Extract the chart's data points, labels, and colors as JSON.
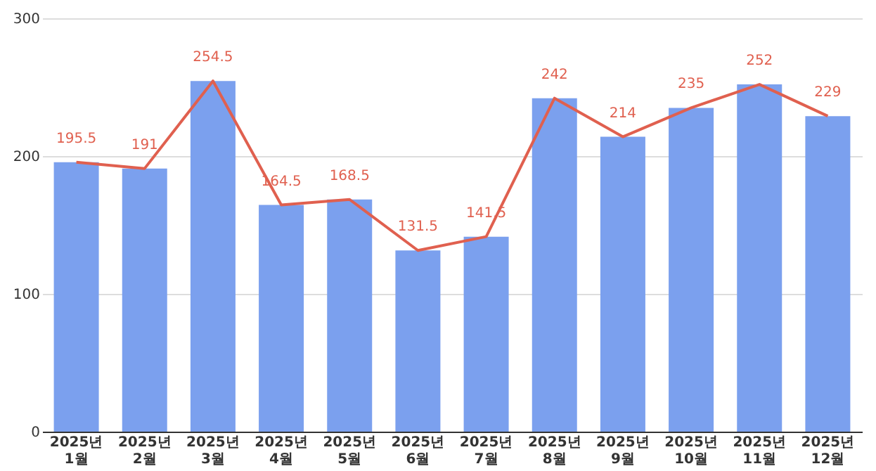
{
  "chart_data": {
    "type": "bar",
    "categories": [
      "2025년\n1월",
      "2025년\n2월",
      "2025년\n3월",
      "2025년\n4월",
      "2025년\n5월",
      "2025년\n6월",
      "2025년\n7월",
      "2025년\n8월",
      "2025년\n9월",
      "2025년\n10월",
      "2025년\n11월",
      "2025년\n12월"
    ],
    "series": [
      {
        "color": "#7ba0ee",
        "values": [
          195.5,
          191,
          254.5,
          164.5,
          168.5,
          131.5,
          141.5,
          242,
          214,
          235,
          252,
          229
        ]
      },
      {
        "type": "line",
        "color": "#e0604f",
        "data_labels": true,
        "values": [
          195.5,
          191,
          254.5,
          164.5,
          168.5,
          131.5,
          141.5,
          242,
          214,
          235,
          252,
          229
        ]
      }
    ],
    "ylim": [
      0,
      300
    ],
    "yticks": [
      0,
      100,
      200,
      300
    ],
    "grid": "y"
  }
}
